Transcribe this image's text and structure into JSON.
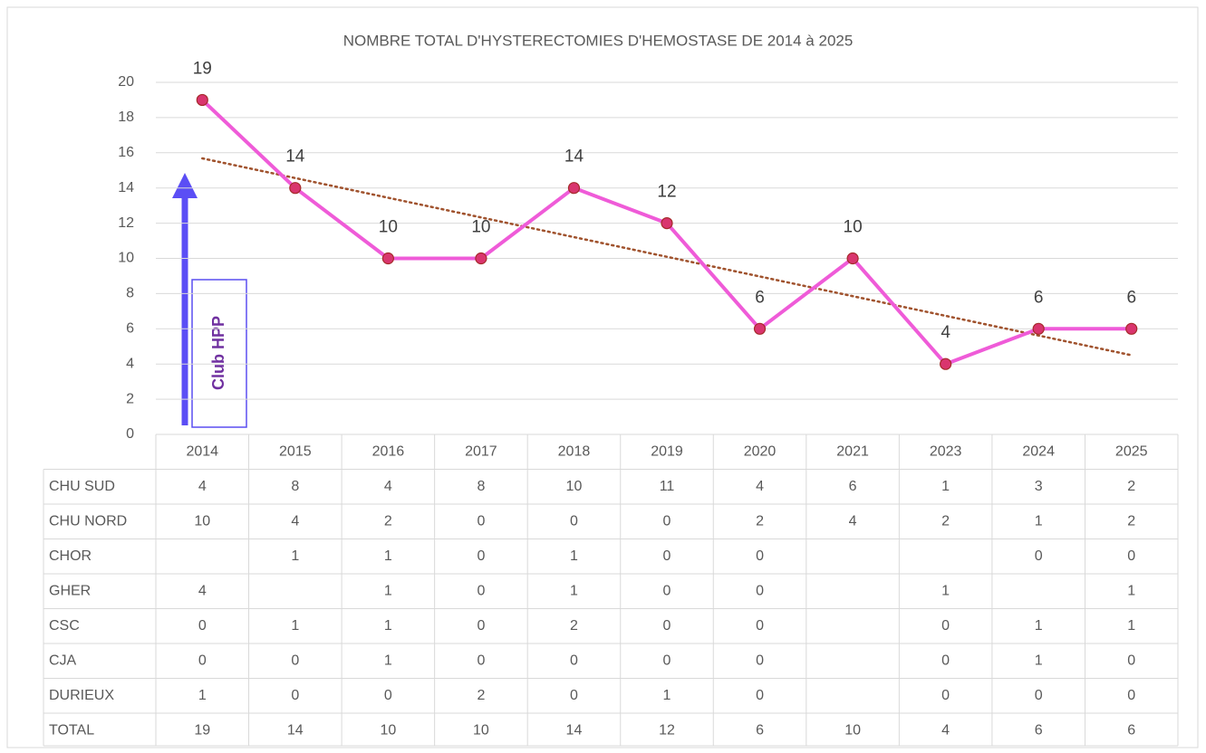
{
  "chart_data": {
    "type": "line",
    "title": "NOMBRE TOTAL D'HYSTERECTOMIES D'HEMOSTASE DE  2014 à 2025",
    "categories": [
      "2014",
      "2015",
      "2016",
      "2017",
      "2018",
      "2019",
      "2020",
      "2021",
      "2023",
      "2024",
      "2025"
    ],
    "values": [
      19,
      14,
      10,
      10,
      14,
      12,
      6,
      10,
      4,
      6,
      6
    ],
    "color": "#ef5bd8",
    "marker_color": "#d9356e",
    "marker_edge": "#a52a2a",
    "trendline": true,
    "trendline_color": "#a0522d",
    "ylim": [
      0,
      20
    ],
    "yticks": [
      0,
      2,
      4,
      6,
      8,
      10,
      12,
      14,
      16,
      18,
      20
    ],
    "grid": true,
    "annotation": "Club HPP",
    "table": {
      "rows": [
        {
          "name": "CHU SUD",
          "values": [
            4,
            8,
            4,
            8,
            10,
            11,
            4,
            6,
            1,
            3,
            2
          ]
        },
        {
          "name": "CHU NORD",
          "values": [
            10,
            4,
            2,
            0,
            0,
            0,
            2,
            4,
            2,
            1,
            2
          ]
        },
        {
          "name": "CHOR",
          "values": [
            null,
            1,
            1,
            0,
            1,
            0,
            0,
            null,
            null,
            0,
            0
          ]
        },
        {
          "name": "GHER",
          "values": [
            4,
            null,
            1,
            0,
            1,
            0,
            0,
            null,
            1,
            null,
            1
          ]
        },
        {
          "name": "CSC",
          "values": [
            0,
            1,
            1,
            0,
            2,
            0,
            0,
            null,
            0,
            1,
            1
          ]
        },
        {
          "name": "CJA",
          "values": [
            0,
            0,
            1,
            0,
            0,
            0,
            0,
            null,
            0,
            1,
            0
          ]
        },
        {
          "name": "DURIEUX",
          "values": [
            1,
            0,
            0,
            2,
            0,
            1,
            0,
            null,
            0,
            0,
            0
          ]
        }
      ],
      "total_label": "TOTAL"
    }
  }
}
